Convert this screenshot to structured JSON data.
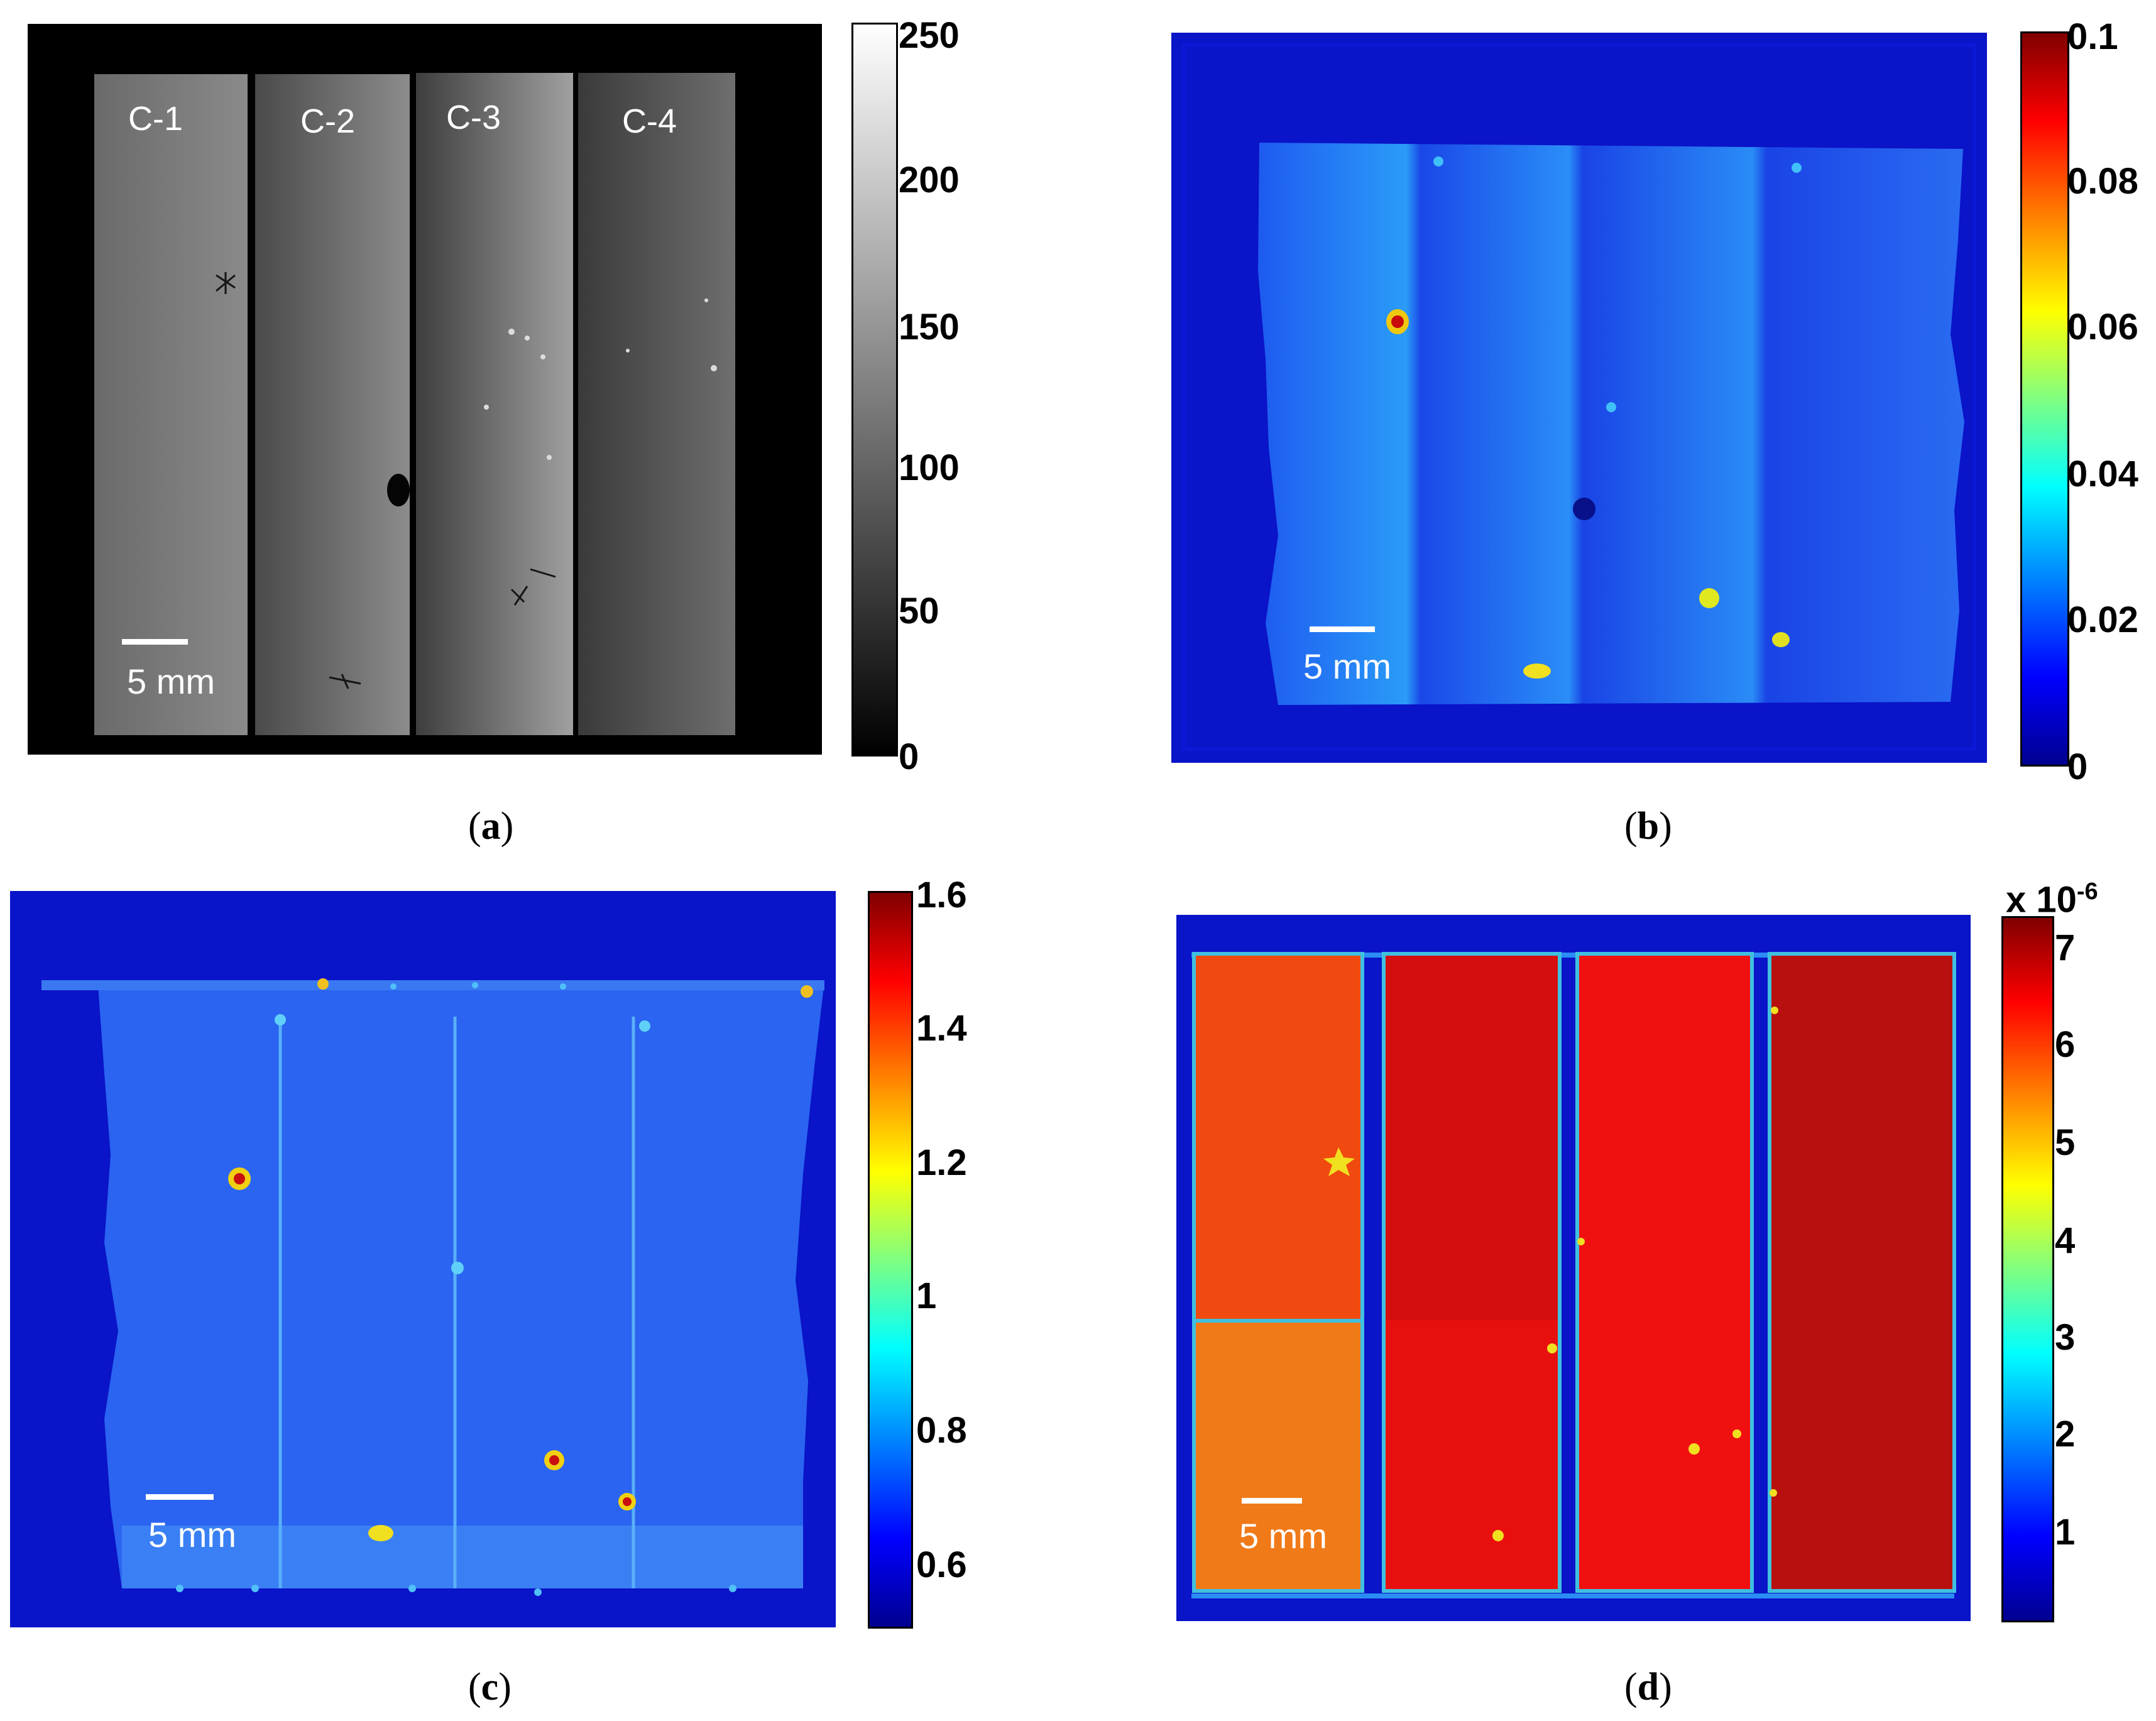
{
  "panels": {
    "a": {
      "caption": "a",
      "strip_labels": [
        "C-1",
        "C-2",
        "C-3",
        "C-4"
      ],
      "scale_bar": "5 mm",
      "colorbar": {
        "colormap": "gray",
        "ticks": [
          "250",
          "200",
          "150",
          "100",
          "50",
          "0"
        ]
      }
    },
    "b": {
      "caption": "b",
      "scale_bar": "5 mm",
      "colorbar": {
        "colormap": "jet",
        "ticks": [
          "0.1",
          "0.08",
          "0.06",
          "0.04",
          "0.02",
          "0"
        ]
      }
    },
    "c": {
      "caption": "c",
      "scale_bar": "5 mm",
      "colorbar": {
        "colormap": "jet",
        "ticks": [
          "1.6",
          "1.4",
          "1.2",
          "1",
          "0.8",
          "0.6"
        ]
      }
    },
    "d": {
      "caption": "d",
      "scale_bar": "5 mm",
      "colorbar": {
        "colormap": "jet",
        "multiplier": "x 10",
        "exponent": "-6",
        "ticks": [
          "7",
          "6",
          "5",
          "4",
          "3",
          "2",
          "1"
        ]
      }
    }
  },
  "colors": {
    "jet_blue": "#0a1fd6",
    "jet_red": "#e8100e",
    "jet_dark_red": "#b8100e",
    "jet_orange": "#f04a10"
  }
}
